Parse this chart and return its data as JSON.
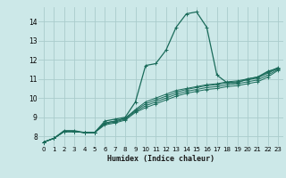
{
  "background_color": "#cce8e8",
  "grid_color": "#aacccc",
  "line_color": "#1a6b5a",
  "xlabel": "Humidex (Indice chaleur)",
  "xlim": [
    -0.5,
    23.5
  ],
  "ylim": [
    7.5,
    14.75
  ],
  "yticks": [
    8,
    9,
    10,
    11,
    12,
    13,
    14
  ],
  "xticks": [
    0,
    1,
    2,
    3,
    4,
    5,
    6,
    7,
    8,
    9,
    10,
    11,
    12,
    13,
    14,
    15,
    16,
    17,
    18,
    19,
    20,
    21,
    22,
    23
  ],
  "series": [
    {
      "x": [
        0,
        1,
        2,
        3,
        4,
        5,
        6,
        7,
        8,
        9,
        10,
        11,
        12,
        13,
        14,
        15,
        16,
        17,
        18,
        19,
        20,
        21,
        22,
        23
      ],
      "y": [
        7.7,
        7.9,
        8.3,
        8.3,
        8.2,
        8.2,
        8.8,
        8.9,
        9.0,
        9.8,
        11.7,
        11.8,
        12.5,
        13.7,
        14.4,
        14.5,
        13.7,
        11.2,
        10.8,
        10.8,
        11.0,
        11.1,
        11.4,
        11.55
      ]
    },
    {
      "x": [
        0,
        1,
        2,
        3,
        4,
        5,
        6,
        7,
        8,
        9,
        10,
        11,
        12,
        13,
        14,
        15,
        16,
        17,
        18,
        19,
        20,
        21,
        22,
        23
      ],
      "y": [
        7.7,
        7.9,
        8.25,
        8.25,
        8.2,
        8.2,
        8.7,
        8.8,
        8.95,
        9.4,
        9.8,
        10.0,
        10.2,
        10.4,
        10.5,
        10.6,
        10.7,
        10.75,
        10.85,
        10.9,
        11.0,
        11.1,
        11.35,
        11.6
      ]
    },
    {
      "x": [
        0,
        1,
        2,
        3,
        4,
        5,
        6,
        7,
        8,
        9,
        10,
        11,
        12,
        13,
        14,
        15,
        16,
        17,
        18,
        19,
        20,
        21,
        22,
        23
      ],
      "y": [
        7.7,
        7.9,
        8.25,
        8.25,
        8.2,
        8.2,
        8.7,
        8.8,
        8.95,
        9.35,
        9.7,
        9.9,
        10.1,
        10.3,
        10.45,
        10.55,
        10.65,
        10.7,
        10.8,
        10.85,
        10.95,
        11.05,
        11.3,
        11.55
      ]
    },
    {
      "x": [
        0,
        1,
        2,
        3,
        4,
        5,
        6,
        7,
        8,
        9,
        10,
        11,
        12,
        13,
        14,
        15,
        16,
        17,
        18,
        19,
        20,
        21,
        22,
        23
      ],
      "y": [
        7.7,
        7.9,
        8.25,
        8.25,
        8.2,
        8.2,
        8.65,
        8.75,
        8.9,
        9.3,
        9.6,
        9.8,
        10.0,
        10.2,
        10.35,
        10.45,
        10.55,
        10.6,
        10.7,
        10.75,
        10.85,
        10.95,
        11.2,
        11.5
      ]
    },
    {
      "x": [
        0,
        1,
        2,
        3,
        4,
        5,
        6,
        7,
        8,
        9,
        10,
        11,
        12,
        13,
        14,
        15,
        16,
        17,
        18,
        19,
        20,
        21,
        22,
        23
      ],
      "y": [
        7.7,
        7.9,
        8.25,
        8.25,
        8.2,
        8.2,
        8.6,
        8.7,
        8.85,
        9.25,
        9.5,
        9.7,
        9.9,
        10.1,
        10.25,
        10.35,
        10.45,
        10.5,
        10.6,
        10.65,
        10.75,
        10.85,
        11.1,
        11.45
      ]
    }
  ]
}
